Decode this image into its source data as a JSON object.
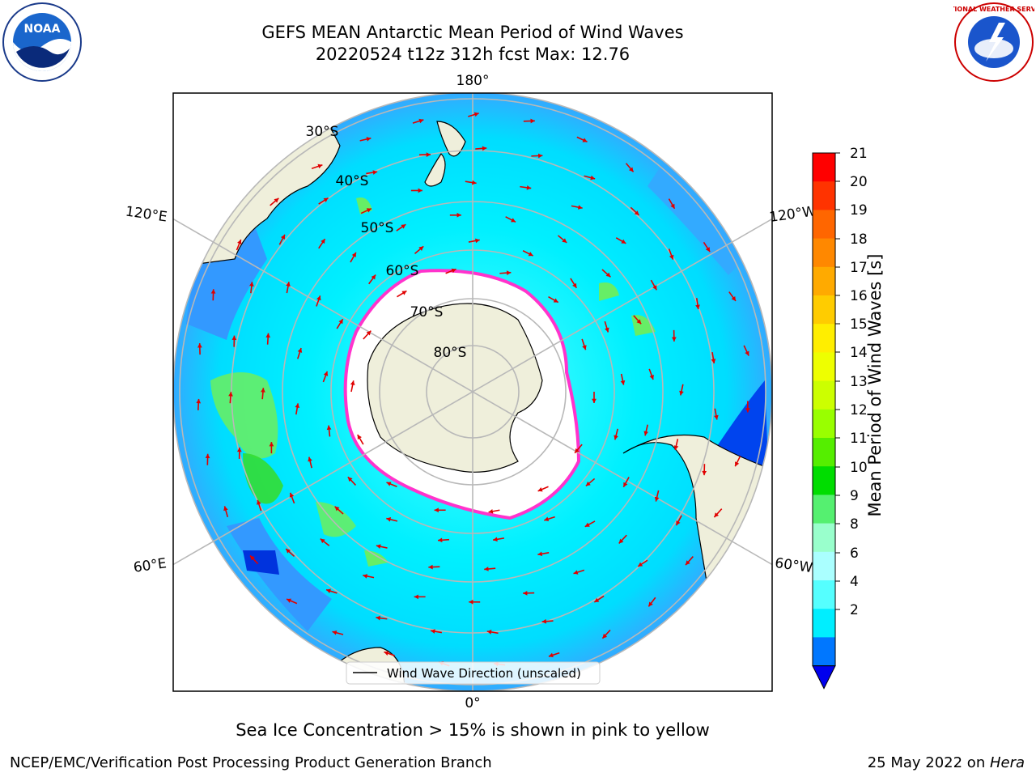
{
  "header": {
    "title_line1": "GEFS MEAN Antarctic Mean Period of Wind Waves",
    "title_line2": "20220524 t12z 312h fcst   Max: 12.76"
  },
  "logos": {
    "left": {
      "name": "noaa-logo",
      "text": "NOAA"
    },
    "right": {
      "name": "nws-logo",
      "text": "NATIONAL WEATHER SERVICE"
    }
  },
  "map": {
    "projection": "south-polar-stereographic",
    "lon_labels": {
      "top": "180°",
      "bottom": "0°",
      "upper_left": "120°E",
      "lower_left": "60°E",
      "upper_right": "120°W",
      "lower_right": "60°W"
    },
    "lat_labels": [
      "30°S",
      "40°S",
      "50°S",
      "60°S",
      "70°S",
      "80°S"
    ],
    "legend": "Wind Wave Direction (unscaled)",
    "colors": {
      "land": "#efefdb",
      "ocean_low": "#00f0ff",
      "ice": "#ffffff",
      "ice_edge": "#ff33cc",
      "arrow": "#e00000",
      "grid": "#b8b8b8"
    }
  },
  "colorbar": {
    "label": "Mean Period of Wind Waves [s]",
    "ticks": [
      "21",
      "20",
      "19",
      "18",
      "17",
      "16",
      "15",
      "14",
      "13",
      "12",
      "11",
      "10",
      "9",
      "8",
      "6",
      "4",
      "2"
    ],
    "colors_top_to_bottom": [
      "#ff0000",
      "#ff3300",
      "#ff6600",
      "#ff8800",
      "#ffaa00",
      "#ffcc00",
      "#ffee00",
      "#eeff00",
      "#ccff00",
      "#99ff00",
      "#55ee00",
      "#00dd00",
      "#55f070",
      "#99ffcc",
      "#aaffff",
      "#55ffff",
      "#00eeff",
      "#0077ff"
    ],
    "extend_color": "#0000ee"
  },
  "footer": {
    "sea_ice_note": "Sea Ice Concentration > 15% is shown in pink to yellow",
    "left": "NCEP/EMC/Verification Post Processing Product Generation Branch",
    "right_date": "25 May 2022 on ",
    "right_host": "Hera"
  }
}
